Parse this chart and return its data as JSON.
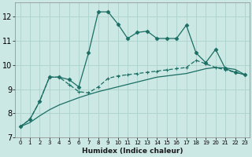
{
  "xlabel": "Humidex (Indice chaleur)",
  "bg_color": "#cce8e4",
  "grid_color": "#b0d4cf",
  "line_color": "#1a6e64",
  "xlim": [
    -0.5,
    23.5
  ],
  "ylim": [
    7,
    12.6
  ],
  "xticks": [
    0,
    1,
    2,
    3,
    4,
    5,
    6,
    7,
    8,
    9,
    10,
    11,
    12,
    13,
    14,
    15,
    16,
    17,
    18,
    19,
    20,
    21,
    22,
    23
  ],
  "yticks": [
    7,
    8,
    9,
    10,
    11,
    12
  ],
  "series1_x": [
    0,
    1,
    2,
    3,
    4,
    5,
    6,
    7,
    8,
    9,
    10,
    11,
    12,
    13,
    14,
    15,
    16,
    17,
    18,
    19,
    20,
    21,
    22,
    23
  ],
  "series1_y": [
    7.45,
    7.75,
    8.5,
    9.5,
    9.5,
    9.4,
    9.1,
    10.5,
    12.2,
    12.2,
    11.7,
    11.1,
    11.35,
    11.4,
    11.1,
    11.1,
    11.1,
    11.65,
    10.5,
    10.1,
    10.65,
    9.85,
    9.7,
    9.6
  ],
  "series2_x": [
    0,
    1,
    2,
    3,
    4,
    5,
    6,
    7,
    8,
    9,
    10,
    11,
    12,
    13,
    14,
    15,
    16,
    17,
    18,
    19,
    20,
    21,
    22,
    23
  ],
  "series2_y": [
    7.45,
    7.75,
    8.5,
    9.5,
    9.5,
    9.2,
    8.9,
    8.85,
    9.1,
    9.45,
    9.55,
    9.6,
    9.65,
    9.7,
    9.75,
    9.8,
    9.85,
    9.9,
    10.2,
    10.05,
    9.9,
    9.8,
    9.7,
    9.6
  ],
  "series3_x": [
    0,
    1,
    2,
    3,
    4,
    5,
    6,
    7,
    8,
    9,
    10,
    11,
    12,
    13,
    14,
    15,
    16,
    17,
    18,
    19,
    20,
    21,
    22,
    23
  ],
  "series3_y": [
    7.45,
    7.62,
    7.9,
    8.15,
    8.35,
    8.5,
    8.65,
    8.78,
    8.9,
    9.0,
    9.1,
    9.2,
    9.3,
    9.4,
    9.5,
    9.55,
    9.6,
    9.65,
    9.75,
    9.85,
    9.9,
    9.88,
    9.82,
    9.6
  ],
  "xlabel_fontsize": 6.5,
  "tick_fontsize_x": 5,
  "tick_fontsize_y": 7
}
